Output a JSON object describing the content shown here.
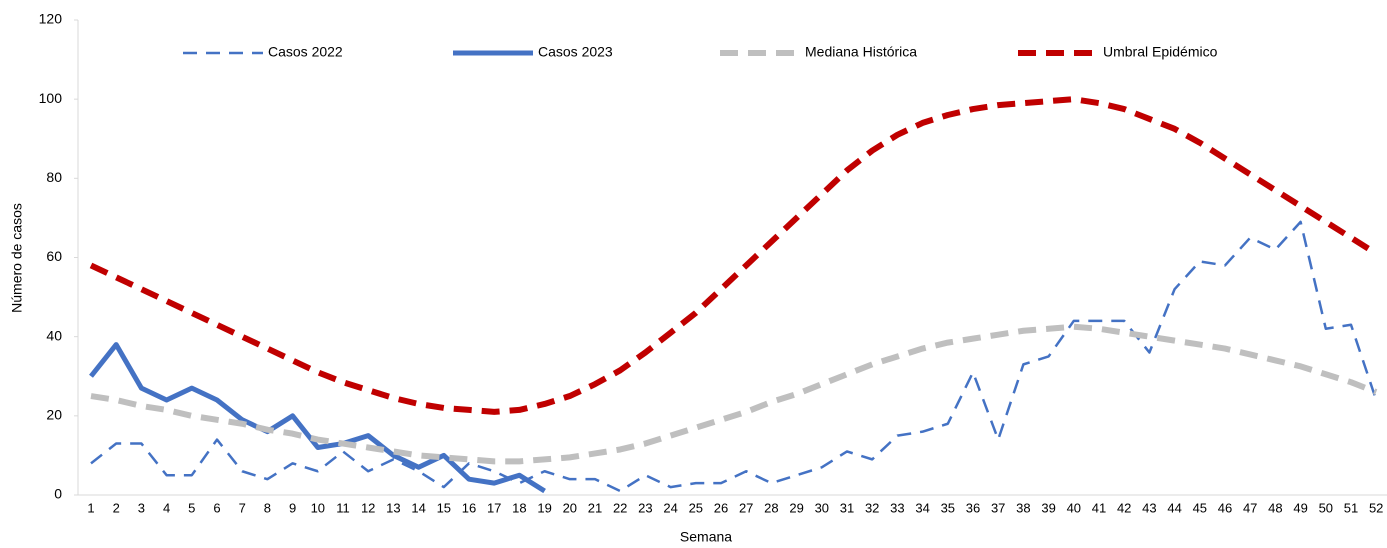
{
  "chart_data": {
    "type": "line",
    "x_label": "Semana",
    "y_label": "Número de casos",
    "categories": [
      "1",
      "2",
      "3",
      "4",
      "5",
      "6",
      "7",
      "8",
      "9",
      "10",
      "11",
      "12",
      "13",
      "14",
      "15",
      "16",
      "17",
      "18",
      "19",
      "20",
      "21",
      "22",
      "23",
      "24",
      "25",
      "26",
      "27",
      "28",
      "29",
      "30",
      "31",
      "32",
      "33",
      "34",
      "35",
      "36",
      "37",
      "38",
      "39",
      "40",
      "41",
      "42",
      "43",
      "44",
      "45",
      "46",
      "47",
      "48",
      "49",
      "50",
      "51",
      "52"
    ],
    "ylim": [
      0,
      120
    ],
    "yticks": [
      0,
      20,
      40,
      60,
      80,
      100,
      120
    ],
    "grid": false,
    "legend": "top",
    "series": [
      {
        "name": "Casos 2022",
        "color": "#4472c4",
        "style": "dashed",
        "values": [
          8,
          13,
          13,
          5,
          5,
          14,
          6,
          4,
          8,
          6,
          11,
          6,
          9,
          6,
          2,
          8,
          6,
          3,
          6,
          4,
          4,
          1,
          5,
          2,
          3,
          3,
          6,
          3,
          5,
          7,
          11,
          9,
          15,
          16,
          18,
          31,
          14,
          33,
          35,
          44,
          44,
          44,
          36,
          52,
          59,
          58,
          65,
          62,
          69,
          42,
          43,
          24
        ]
      },
      {
        "name": "Casos 2023",
        "color": "#4472c4",
        "style": "solid",
        "values": [
          30,
          38,
          27,
          24,
          27,
          24,
          19,
          16,
          20,
          12,
          13,
          15,
          10,
          7,
          10,
          4,
          3,
          5,
          1,
          null,
          null,
          null,
          null,
          null,
          null,
          null,
          null,
          null,
          null,
          null,
          null,
          null,
          null,
          null,
          null,
          null,
          null,
          null,
          null,
          null,
          null,
          null,
          null,
          null,
          null,
          null,
          null,
          null,
          null,
          null,
          null,
          null
        ]
      },
      {
        "name": "Mediana Histórica",
        "color": "#bfbfbf",
        "style": "dashed",
        "values": [
          25,
          24,
          22.5,
          21.5,
          20,
          19,
          18,
          16.5,
          15.5,
          14,
          13,
          12,
          11,
          10,
          9.5,
          9,
          8.5,
          8.5,
          9,
          9.5,
          10.5,
          11.5,
          13,
          15,
          17,
          19,
          21,
          23.5,
          25.5,
          28,
          30.5,
          33,
          35,
          37,
          38.5,
          39.5,
          40.5,
          41.5,
          42,
          42.5,
          42,
          41,
          40,
          39,
          38,
          37,
          35.5,
          34,
          32.5,
          30.5,
          28.5,
          26
        ]
      },
      {
        "name": "Umbral Epidémico",
        "color": "#c00000",
        "style": "dashed",
        "values": [
          58,
          55,
          52,
          49,
          46,
          43,
          40,
          37,
          34,
          31,
          28.5,
          26.5,
          24.5,
          23,
          22,
          21.5,
          21,
          21.5,
          23,
          25,
          28,
          31.5,
          36,
          41,
          46,
          52,
          58,
          64,
          70,
          76,
          82,
          87,
          91,
          94,
          96,
          97.5,
          98.5,
          99,
          99.5,
          100,
          99,
          97.5,
          95,
          92.5,
          89,
          85,
          81,
          77,
          73,
          69,
          65,
          61
        ]
      }
    ]
  }
}
